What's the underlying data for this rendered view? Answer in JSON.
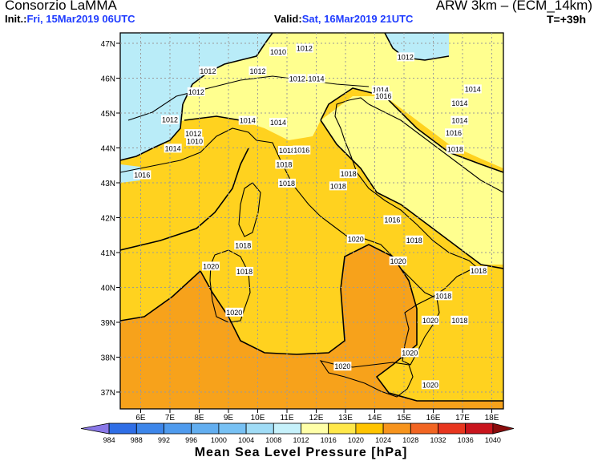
{
  "header": {
    "org": "Consorzio LaMMA",
    "model": "ARW 3km – (ECM_14km)",
    "init_label": "Init.:",
    "init_value": "Fri, 15Mar2019 06UTC",
    "valid_label": "Valid:",
    "valid_value": "Sat, 16Mar2019 21UTC",
    "step": "T=+39h"
  },
  "axes": {
    "lat_labels": [
      "47N",
      "46N",
      "45N",
      "44N",
      "43N",
      "42N",
      "41N",
      "40N",
      "39N",
      "38N",
      "37N"
    ],
    "lat_values": [
      47,
      46,
      45,
      44,
      43,
      42,
      41,
      40,
      39,
      38,
      37
    ],
    "lon_labels": [
      "6E",
      "7E",
      "8E",
      "9E",
      "10E",
      "11E",
      "12E",
      "13E",
      "14E",
      "15E",
      "16E",
      "17E",
      "18E"
    ],
    "lon_values": [
      6,
      7,
      8,
      9,
      10,
      11,
      12,
      13,
      14,
      15,
      16,
      17,
      18
    ]
  },
  "legend": {
    "title": "Mean Sea Level Pressure [hPa]",
    "ticks": [
      "984",
      "988",
      "992",
      "996",
      "1000",
      "1004",
      "1008",
      "1012",
      "1016",
      "1020",
      "1024",
      "1028",
      "1032",
      "1036",
      "1040"
    ],
    "colors": [
      "#8a78e8",
      "#2f6ee6",
      "#3d86ea",
      "#4f9bee",
      "#62aef0",
      "#77c1f4",
      "#a0dcf6",
      "#c6f1fb",
      "#ffffa8",
      "#ffe84a",
      "#ffc400",
      "#f7941d",
      "#f26522",
      "#e8361f",
      "#c9151d",
      "#8b0d0d"
    ]
  },
  "isobars": [
    {
      "text": "1012",
      "lon": 11.6,
      "lat": 46.85
    },
    {
      "text": "1010",
      "lon": 10.7,
      "lat": 46.75
    },
    {
      "text": "1012",
      "lon": 15.05,
      "lat": 46.6
    },
    {
      "text": "1012",
      "lon": 8.3,
      "lat": 46.2
    },
    {
      "text": "1012",
      "lon": 10.0,
      "lat": 46.2
    },
    {
      "text": "1012",
      "lon": 11.35,
      "lat": 45.98
    },
    {
      "text": "1014",
      "lon": 12.0,
      "lat": 45.98
    },
    {
      "text": "1012",
      "lon": 7.9,
      "lat": 45.6
    },
    {
      "text": "1014",
      "lon": 14.2,
      "lat": 45.65
    },
    {
      "text": "1016",
      "lon": 14.3,
      "lat": 45.48
    },
    {
      "text": "1014",
      "lon": 17.35,
      "lat": 45.68
    },
    {
      "text": "1014",
      "lon": 16.9,
      "lat": 45.28
    },
    {
      "text": "1012",
      "lon": 7.0,
      "lat": 44.8
    },
    {
      "text": "1014",
      "lon": 9.65,
      "lat": 44.78
    },
    {
      "text": "1014",
      "lon": 10.7,
      "lat": 44.72
    },
    {
      "text": "1014",
      "lon": 16.9,
      "lat": 44.78
    },
    {
      "text": "1012",
      "lon": 7.8,
      "lat": 44.4
    },
    {
      "text": "1016",
      "lon": 16.7,
      "lat": 44.42
    },
    {
      "text": "1010",
      "lon": 7.85,
      "lat": 44.18
    },
    {
      "text": "1014",
      "lon": 7.1,
      "lat": 43.98
    },
    {
      "text": "1018",
      "lon": 11.0,
      "lat": 43.92
    },
    {
      "text": "1016",
      "lon": 11.5,
      "lat": 43.93
    },
    {
      "text": "1018",
      "lon": 16.75,
      "lat": 43.95
    },
    {
      "text": "1018",
      "lon": 10.9,
      "lat": 43.52
    },
    {
      "text": "1016",
      "lon": 6.05,
      "lat": 43.22
    },
    {
      "text": "1018",
      "lon": 13.1,
      "lat": 43.25
    },
    {
      "text": "1018",
      "lon": 11.0,
      "lat": 42.98
    },
    {
      "text": "1018",
      "lon": 12.75,
      "lat": 42.9
    },
    {
      "text": "1016",
      "lon": 14.6,
      "lat": 41.93
    },
    {
      "text": "1020",
      "lon": 13.35,
      "lat": 41.38
    },
    {
      "text": "1018",
      "lon": 15.35,
      "lat": 41.35
    },
    {
      "text": "1018",
      "lon": 9.5,
      "lat": 41.2
    },
    {
      "text": "1020",
      "lon": 14.8,
      "lat": 40.75
    },
    {
      "text": "1020",
      "lon": 8.4,
      "lat": 40.6
    },
    {
      "text": "1018",
      "lon": 9.55,
      "lat": 40.45
    },
    {
      "text": "1018",
      "lon": 17.55,
      "lat": 40.47
    },
    {
      "text": "1018",
      "lon": 16.35,
      "lat": 39.75
    },
    {
      "text": "1020",
      "lon": 9.2,
      "lat": 39.28
    },
    {
      "text": "1020",
      "lon": 15.9,
      "lat": 39.05
    },
    {
      "text": "1018",
      "lon": 16.9,
      "lat": 39.05
    },
    {
      "text": "1020",
      "lon": 15.2,
      "lat": 38.12
    },
    {
      "text": "1020",
      "lon": 12.9,
      "lat": 37.73
    },
    {
      "text": "1020",
      "lon": 15.9,
      "lat": 37.2
    }
  ]
}
